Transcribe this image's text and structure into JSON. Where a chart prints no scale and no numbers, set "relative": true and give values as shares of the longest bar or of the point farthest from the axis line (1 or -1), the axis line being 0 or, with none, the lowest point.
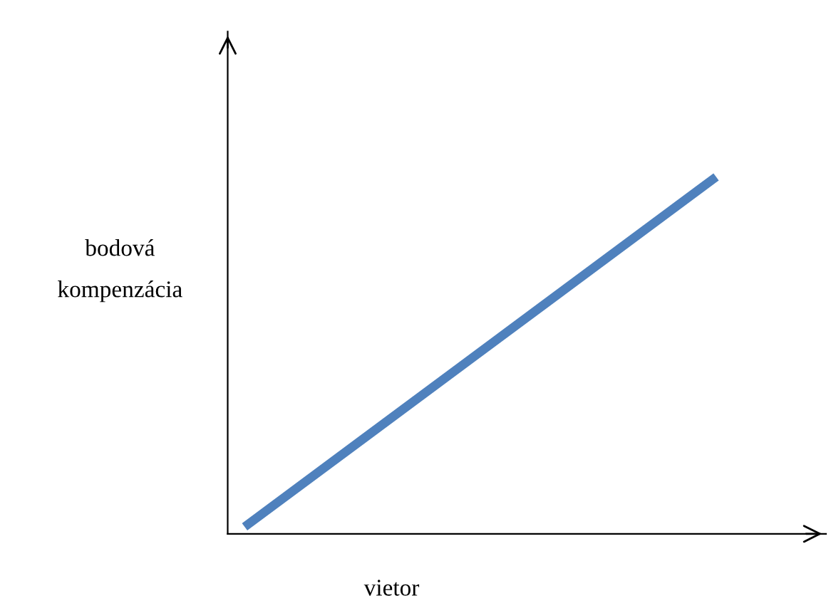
{
  "chart_data": {
    "type": "line",
    "relative": true,
    "xlabel": "vietor",
    "ylabel": "bodová\nkompenzácia",
    "categories": [
      null,
      null
    ],
    "series": [
      {
        "color": "#4f81bd",
        "values": [
          0,
          1
        ]
      }
    ],
    "marker": "none",
    "line_style": "solid",
    "grid": false,
    "legend": false
  }
}
